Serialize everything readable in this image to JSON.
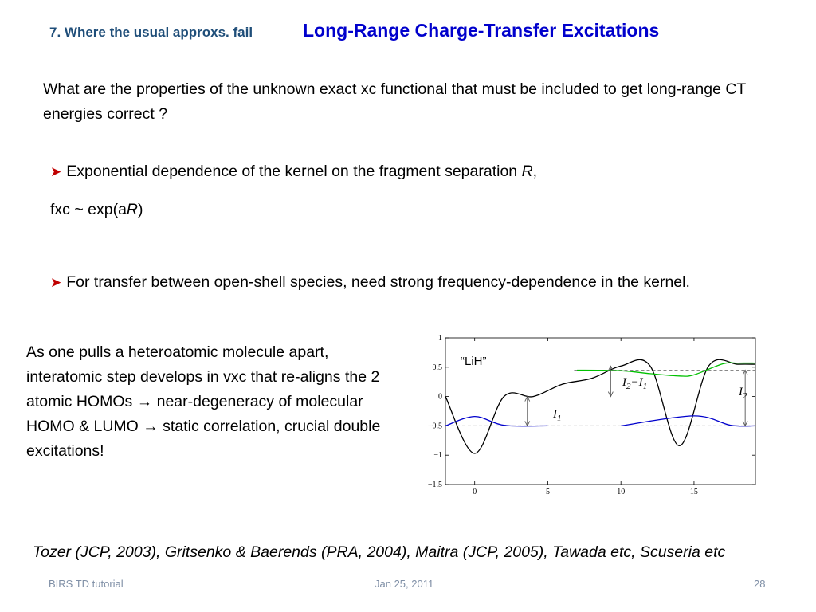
{
  "header": {
    "section_label": "7. Where the usual approxs. fail",
    "title": "Long-Range Charge-Transfer Excitations"
  },
  "main": {
    "question": "What are the properties of the unknown exact xc functional that must be included to get long-range CT energies correct ?",
    "bullet1": {
      "text_before": "Exponential dependence of the kernel on the fragment separation ",
      "var": "R",
      "text_after": ","
    },
    "formula": {
      "before": "fxc ~ exp(a",
      "var": "R",
      "after": ")"
    },
    "bullet2": "For transfer between open-shell species, need strong frequency-dependence in the kernel.",
    "side_paragraph": {
      "part1": "As one pulls a heteroatomic molecule apart, interatomic step develops in vxc that re-aligns the 2 atomic HOMOs ",
      "part2": " near-degeneracy of molecular HOMO & LUMO ",
      "part3": " static correlation, crucial double excitations!"
    },
    "references": "Tozer (JCP, 2003), Gritsenko & Baerends (PRA, 2004), Maitra (JCP, 2005), Tawada etc, Scuseria etc"
  },
  "footer": {
    "left": "BIRS TD tutorial",
    "center": "Jan 25, 2011",
    "right": "28"
  },
  "icons": {
    "bullet": "arrow-bullet-icon",
    "implies": "right-arrow-icon"
  },
  "colors": {
    "section_label": "#1f4e79",
    "title": "#0000cc",
    "bullet_arrow": "#c00000",
    "curve_black": "#000000",
    "curve_blue": "#0000cc",
    "curve_green": "#00c000",
    "dashed_ref": "#888888"
  },
  "chart_data": {
    "type": "line",
    "annotation": "“LiH”",
    "xticks": [
      "0",
      "5",
      "10",
      "15"
    ],
    "yticks": [
      "1",
      "0.5",
      "0",
      "−0.5",
      "−1",
      "−1.5"
    ],
    "xlim": [
      -2,
      19.2
    ],
    "ylim": [
      -1.5,
      1
    ],
    "grid": false,
    "labels": {
      "I1": {
        "base": "I",
        "sub": "1"
      },
      "I2": {
        "base": "I",
        "sub": "2"
      },
      "I2_minus_I1": {
        "base1": "I",
        "sub1": "2",
        "minus": "−",
        "base2": "I",
        "sub2": "1"
      }
    },
    "reference_levels": [
      -0.5,
      0.45
    ],
    "series": [
      {
        "color": "#000000",
        "x": [
          -2,
          0,
          2,
          4,
          6,
          8,
          10,
          12,
          14,
          16,
          18,
          19.2
        ],
        "y": [
          0.0,
          -0.97,
          0.0,
          0.0,
          0.21,
          0.31,
          0.52,
          0.52,
          -0.84,
          0.52,
          0.55,
          0.55
        ]
      },
      {
        "color": "#0000cc",
        "x": [
          -2,
          0,
          2,
          5
        ],
        "y": [
          -0.5,
          -0.34,
          -0.49,
          -0.5
        ]
      },
      {
        "color": "#0000cc",
        "x": [
          10,
          15,
          17.5,
          19.2
        ],
        "y": [
          -0.5,
          -0.33,
          -0.49,
          -0.5
        ]
      },
      {
        "color": "#00c000",
        "x": [
          7,
          10,
          12,
          14,
          15,
          17,
          18,
          19.2
        ],
        "y": [
          0.45,
          0.44,
          0.39,
          0.35,
          0.37,
          0.56,
          0.57,
          0.57
        ]
      }
    ]
  }
}
